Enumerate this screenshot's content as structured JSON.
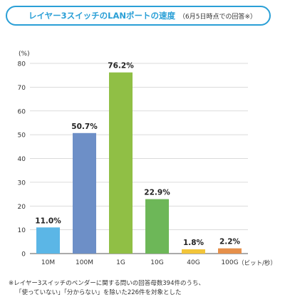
{
  "header": {
    "title": "レイヤー3スイッチのLANポートの速度",
    "note": "（6月5日時点での回答※）"
  },
  "chart_data": {
    "type": "bar",
    "categories": [
      "10M",
      "100M",
      "1G",
      "10G",
      "40G",
      "100G"
    ],
    "values": [
      11.0,
      50.7,
      76.2,
      22.9,
      1.8,
      2.2
    ],
    "value_labels": [
      "11.0%",
      "50.7%",
      "76.2%",
      "22.9%",
      "1.8%",
      "2.2%"
    ],
    "colors": [
      "#5bb6e6",
      "#6d8fc7",
      "#90bf45",
      "#6db758",
      "#f2c53a",
      "#e6904b"
    ],
    "y_unit_label": "(%)",
    "x_unit_label": "（ビット/秒）",
    "ylim": [
      0,
      80
    ],
    "yticks": [
      0,
      10,
      20,
      30,
      40,
      50,
      60,
      70,
      80
    ],
    "grid": true
  },
  "footnote": {
    "line1": "※レイヤー3スイッチのベンダーに関する問いの回答母数394件のうち、",
    "line2": "「使っていない」「分からない」を除いた226件を対象とした"
  }
}
